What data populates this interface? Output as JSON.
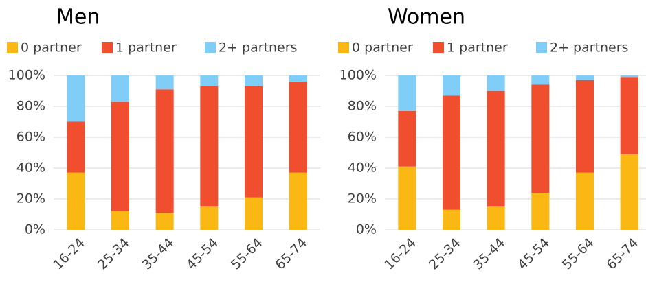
{
  "chart_data": [
    {
      "type": "stacked_bar",
      "title": "Men",
      "categories": [
        "16-24",
        "25-34",
        "35-44",
        "45-54",
        "55-64",
        "65-74"
      ],
      "series": [
        {
          "name": "0 partner",
          "color": "#fbb714",
          "values": [
            37,
            12,
            11,
            15,
            21,
            37
          ]
        },
        {
          "name": "1 partner",
          "color": "#f04e2f",
          "values": [
            33,
            71,
            80,
            78,
            72,
            59
          ]
        },
        {
          "name": "2+ partners",
          "color": "#80cdf7",
          "values": [
            30,
            17,
            9,
            7,
            7,
            4
          ]
        }
      ],
      "ylim": [
        0,
        100
      ],
      "yticks": [
        {
          "value": 0,
          "label": "0%"
        },
        {
          "value": 20,
          "label": "20%"
        },
        {
          "value": 40,
          "label": "40%"
        },
        {
          "value": 60,
          "label": "60%"
        },
        {
          "value": 80,
          "label": "80%"
        },
        {
          "value": 100,
          "label": "100%"
        }
      ],
      "grid": true,
      "legend": "top"
    },
    {
      "type": "stacked_bar",
      "title": "Women",
      "categories": [
        "16-24",
        "25-34",
        "35-44",
        "45-54",
        "55-64",
        "65-74"
      ],
      "series": [
        {
          "name": "0 partner",
          "color": "#fbb714",
          "values": [
            41,
            13,
            15,
            24,
            37,
            49
          ]
        },
        {
          "name": "1 partner",
          "color": "#f04e2f",
          "values": [
            36,
            74,
            75,
            70,
            60,
            50
          ]
        },
        {
          "name": "2+ partners",
          "color": "#80cdf7",
          "values": [
            23,
            13,
            10,
            6,
            3,
            1
          ]
        }
      ],
      "ylim": [
        0,
        100
      ],
      "yticks": [
        {
          "value": 0,
          "label": "0%"
        },
        {
          "value": 20,
          "label": "20%"
        },
        {
          "value": 40,
          "label": "40%"
        },
        {
          "value": 60,
          "label": "60%"
        },
        {
          "value": 80,
          "label": "80%"
        },
        {
          "value": 100,
          "label": "100%"
        }
      ],
      "grid": true,
      "legend": "top"
    }
  ]
}
